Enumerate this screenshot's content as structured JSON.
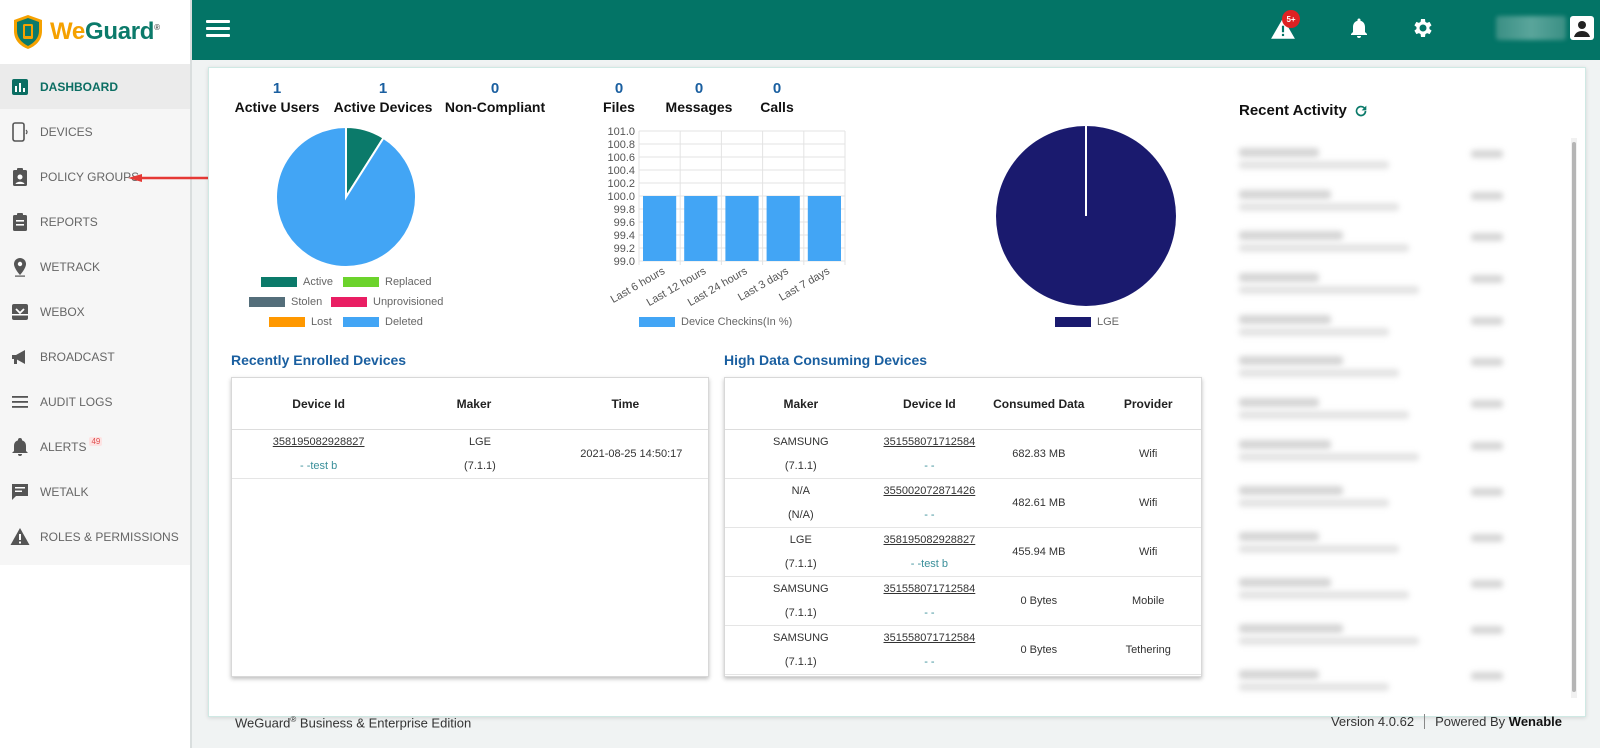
{
  "brand": {
    "we": "We",
    "guard": "Guard",
    "reg": "®"
  },
  "sidebar": {
    "items": [
      {
        "label": "DASHBOARD",
        "icon": "bar-chart-icon"
      },
      {
        "label": "DEVICES",
        "icon": "phone-icon"
      },
      {
        "label": "POLICY GROUPS",
        "icon": "clipboard-person-icon"
      },
      {
        "label": "REPORTS",
        "icon": "clipboard-list-icon"
      },
      {
        "label": "WETRACK",
        "icon": "location-pin-icon"
      },
      {
        "label": "WEBOX",
        "icon": "inbox-icon"
      },
      {
        "label": "BROADCAST",
        "icon": "megaphone-icon"
      },
      {
        "label": "AUDIT LOGS",
        "icon": "list-icon"
      },
      {
        "label": "ALERTS",
        "icon": "bell-icon",
        "badge": "49"
      },
      {
        "label": "WETALK",
        "icon": "chat-icon"
      },
      {
        "label": "ROLES & PERMISSIONS",
        "icon": "warning-icon"
      }
    ]
  },
  "topbar": {
    "alert_badge": "5+"
  },
  "stats": {
    "active_users": {
      "value": "1",
      "label": "Active Users"
    },
    "active_devices": {
      "value": "1",
      "label": "Active Devices"
    },
    "non_compliant": {
      "value": "0",
      "label": "Non-Compliant"
    },
    "files": {
      "value": "0",
      "label": "Files"
    },
    "messages": {
      "value": "0",
      "label": "Messages"
    },
    "calls": {
      "value": "0",
      "label": "Calls"
    }
  },
  "device_status_legend": [
    {
      "label": "Active",
      "color": "#0b7a6a"
    },
    {
      "label": "Replaced",
      "color": "#6cd32c"
    },
    {
      "label": "Stolen",
      "color": "#546e7a"
    },
    {
      "label": "Unprovisioned",
      "color": "#e91e63"
    },
    {
      "label": "Lost",
      "color": "#ff9800"
    },
    {
      "label": "Deleted",
      "color": "#42a5f5"
    }
  ],
  "chart_data": [
    {
      "type": "pie",
      "labels": [
        "Active",
        "Deleted"
      ],
      "values": [
        9,
        91
      ],
      "colors": [
        "#0b7a6a",
        "#42a5f5"
      ]
    },
    {
      "type": "bar",
      "categories": [
        "Last 6 hours",
        "Last 12 hours",
        "Last 24 hours",
        "Last 3 days",
        "Last 7 days"
      ],
      "series": [
        {
          "name": "Device Checkins(In %)",
          "values": [
            100,
            100,
            100,
            100,
            100
          ]
        }
      ],
      "ylim": [
        99.0,
        101.0
      ],
      "yticks": [
        "101.0",
        "100.8",
        "100.6",
        "100.4",
        "100.2",
        "100.0",
        "99.8",
        "99.6",
        "99.4",
        "99.2",
        "99.0"
      ],
      "color": "#42a5f5",
      "grid": true
    },
    {
      "type": "pie",
      "labels": [
        "LGE"
      ],
      "values": [
        100
      ],
      "colors": [
        "#1a1a6e"
      ]
    }
  ],
  "recently_enrolled": {
    "title": "Recently Enrolled Devices",
    "headers": [
      "Device Id",
      "Maker",
      "Time"
    ],
    "rows": [
      {
        "device_id": "358195082928827",
        "sub": "- -test b",
        "maker": "LGE",
        "version": "(7.1.1)",
        "time": "2021-08-25 14:50:17"
      }
    ]
  },
  "high_data": {
    "title": "High Data Consuming Devices",
    "headers": [
      "Maker",
      "Device Id",
      "Consumed Data",
      "Provider"
    ],
    "rows": [
      {
        "maker": "SAMSUNG",
        "version": "(7.1.1)",
        "device_id": "351558071712584",
        "sub": "- -",
        "data": "682.83 MB",
        "provider": "Wifi"
      },
      {
        "maker": "N/A",
        "version": "(N/A)",
        "device_id": "355002072871426",
        "sub": "- -",
        "data": "482.61 MB",
        "provider": "Wifi"
      },
      {
        "maker": "LGE",
        "version": "(7.1.1)",
        "device_id": "358195082928827",
        "sub": "- -test b",
        "data": "455.94 MB",
        "provider": "Wifi"
      },
      {
        "maker": "SAMSUNG",
        "version": "(7.1.1)",
        "device_id": "351558071712584",
        "sub": "- -",
        "data": "0 Bytes",
        "provider": "Mobile"
      },
      {
        "maker": "SAMSUNG",
        "version": "(7.1.1)",
        "device_id": "351558071712584",
        "sub": "- -",
        "data": "0 Bytes",
        "provider": "Tethering"
      }
    ]
  },
  "recent_activity": {
    "title": "Recent Activity"
  },
  "footer": {
    "edition_pre": "WeGuard",
    "edition_reg": "®",
    "edition_post": " Business & Enterprise Edition",
    "version": "Version 4.0.62",
    "powered": "Powered By ",
    "powered_brand": "Wenable"
  }
}
